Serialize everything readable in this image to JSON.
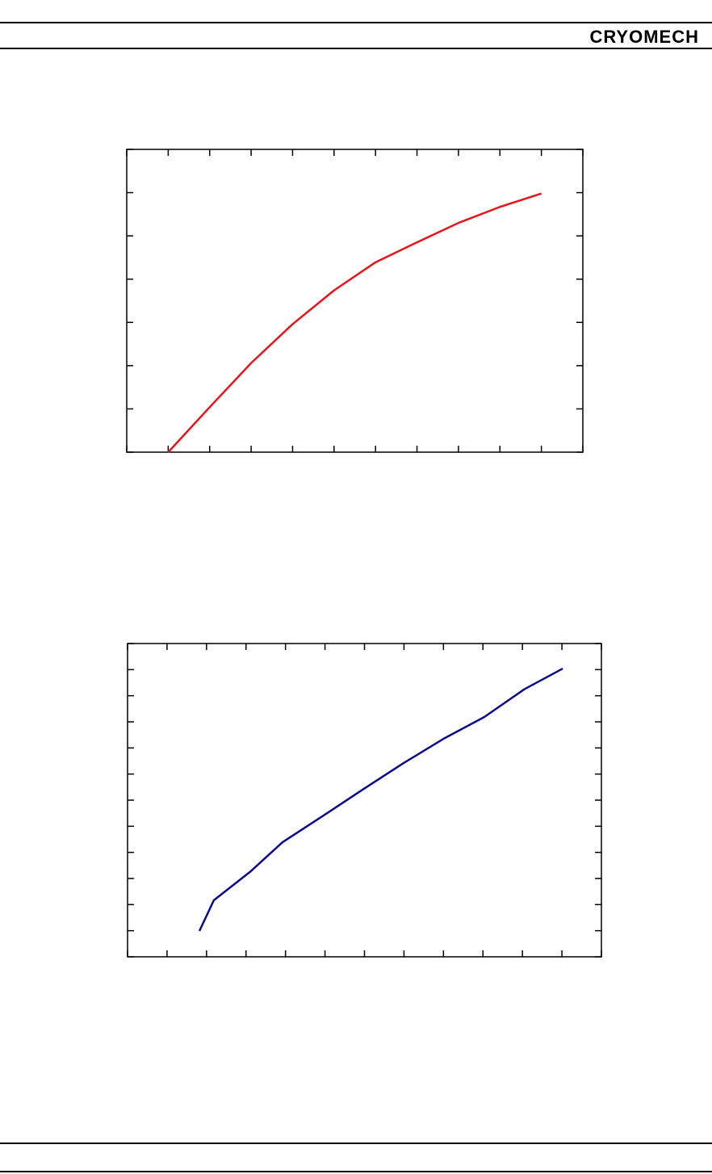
{
  "header": {
    "logo": "CRYOMECH"
  },
  "chart_data": [
    {
      "type": "line",
      "x": [
        1,
        2,
        3,
        4,
        5,
        6,
        7,
        8,
        9,
        10
      ],
      "series": [
        {
          "color": "#e8141a",
          "values": [
            0,
            1.04,
            2.06,
            2.96,
            3.74,
            4.39,
            4.85,
            5.3,
            5.67,
            5.98
          ]
        }
      ],
      "xlim": [
        0,
        11
      ],
      "xticks": [
        0,
        1,
        2,
        3,
        4,
        5,
        6,
        7,
        8,
        9,
        10,
        11
      ],
      "ylim": [
        0,
        7
      ],
      "yticks": [
        0,
        1,
        2,
        3,
        4,
        5,
        6,
        7
      ]
    },
    {
      "type": "line",
      "x": [
        3.64,
        4.37,
        6.2,
        7.85,
        9.9,
        11.9,
        13.98,
        16.0,
        18.07,
        20.1,
        22.04
      ],
      "series": [
        {
          "color": "#0a0a8a",
          "values": [
            1.98,
            4.33,
            6.5,
            8.78,
            10.8,
            12.8,
            14.84,
            16.7,
            18.37,
            20.5,
            22.08
          ]
        }
      ],
      "xlim": [
        0,
        24
      ],
      "xticks": [
        0,
        2,
        4,
        6,
        8,
        10,
        12,
        14,
        16,
        18,
        20,
        22,
        24
      ],
      "ylim": [
        0,
        24
      ],
      "yticks": [
        0,
        2,
        4,
        6,
        8,
        10,
        12,
        14,
        16,
        18,
        20,
        22,
        24
      ]
    }
  ]
}
